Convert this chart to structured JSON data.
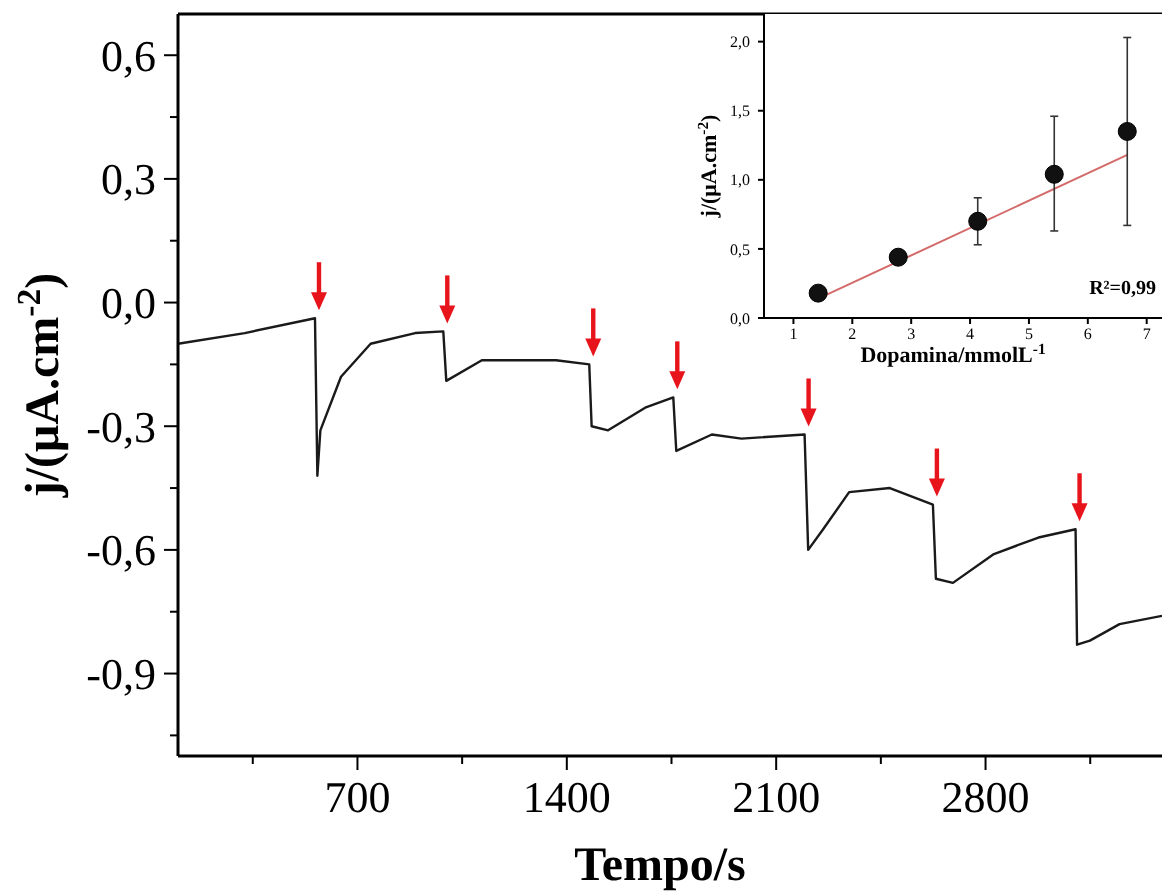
{
  "chart_data": [
    {
      "type": "line",
      "xlabel": "Tempo/s",
      "ylabel": "j/(μA.cm$^{-2}$)",
      "x": [
        100,
        323,
        558,
        566,
        576,
        645,
        744,
        893,
        987,
        997,
        1116,
        1364,
        1475,
        1483,
        1538,
        1662,
        1756,
        1766,
        1885,
        1984,
        2195,
        2207,
        2257,
        2344,
        2480,
        2624,
        2634,
        2691,
        2828,
        2977,
        3101,
        3106,
        3149,
        3248,
        3390
      ],
      "series": [
        {
          "color": "#1a1a1a",
          "values": [
            -0.1,
            -0.074,
            -0.038,
            -0.42,
            -0.31,
            -0.18,
            -0.1,
            -0.074,
            -0.07,
            -0.19,
            -0.14,
            -0.14,
            -0.15,
            -0.3,
            -0.31,
            -0.255,
            -0.23,
            -0.36,
            -0.32,
            -0.33,
            -0.32,
            -0.6,
            -0.55,
            -0.46,
            -0.45,
            -0.49,
            -0.67,
            -0.68,
            -0.61,
            -0.57,
            -0.55,
            -0.83,
            -0.82,
            -0.78,
            -0.76
          ]
        }
      ],
      "xlim": [
        100,
        3390
      ],
      "ylim": [
        -1.1,
        0.7
      ],
      "xticks": [
        {
          "value": 350,
          "label": null
        },
        700,
        {
          "value": 1050,
          "label": null
        },
        1400,
        {
          "value": 1750,
          "label": null
        },
        2100,
        {
          "value": 2450,
          "label": null
        },
        2800,
        {
          "value": 3150,
          "label": null
        }
      ],
      "yticks": [
        {
          "value": -1.05,
          "label": null
        },
        {
          "value": -0.9,
          "label": "-0,9"
        },
        {
          "value": -0.75,
          "label": null
        },
        {
          "value": -0.6,
          "label": "-0,6"
        },
        {
          "value": -0.45,
          "label": null
        },
        {
          "value": -0.3,
          "label": "-0,3"
        },
        {
          "value": -0.15,
          "label": null
        },
        {
          "value": 0,
          "label": "0,0"
        },
        {
          "value": 0.15,
          "label": null
        },
        {
          "value": 0.3,
          "label": "0,3"
        },
        {
          "value": 0.45,
          "label": null
        },
        {
          "value": 0.6,
          "label": "0,6"
        }
      ]
    },
    {
      "type": "scatter",
      "xlabel": "Dopamina/mmolL$^{-1}$",
      "ylabel": "j/(μA.cm$^{-2}$)",
      "x": [
        1.42,
        2.78,
        4.13,
        5.43,
        6.67
      ],
      "series": [
        {
          "marker": "circle",
          "color": "#111111",
          "values": [
            0.18,
            0.44,
            0.7,
            1.04,
            1.35
          ],
          "errors": [
            null,
            null,
            [
              0.53,
              0.87
            ],
            [
              0.63,
              1.46
            ],
            [
              0.67,
              2.03
            ]
          ]
        },
        {
          "type": "line",
          "color": "#d46a6a",
          "x": [
            1.42,
            6.67
          ],
          "values": [
            0.14,
            1.18
          ]
        }
      ],
      "xlim": [
        0.5,
        7.26
      ],
      "ylim": [
        0,
        2.2
      ],
      "xticks": [
        1,
        2,
        3,
        4,
        5,
        6,
        7
      ],
      "yticks": [
        {
          "value": 0,
          "label": "0,0"
        },
        {
          "value": 0.5,
          "label": "0,5"
        },
        {
          "value": 1,
          "label": "1,0"
        },
        {
          "value": 1.5,
          "label": "1,5"
        },
        {
          "value": 2,
          "label": "2,0"
        }
      ],
      "annotations": [
        "R²=0,99"
      ]
    }
  ]
}
